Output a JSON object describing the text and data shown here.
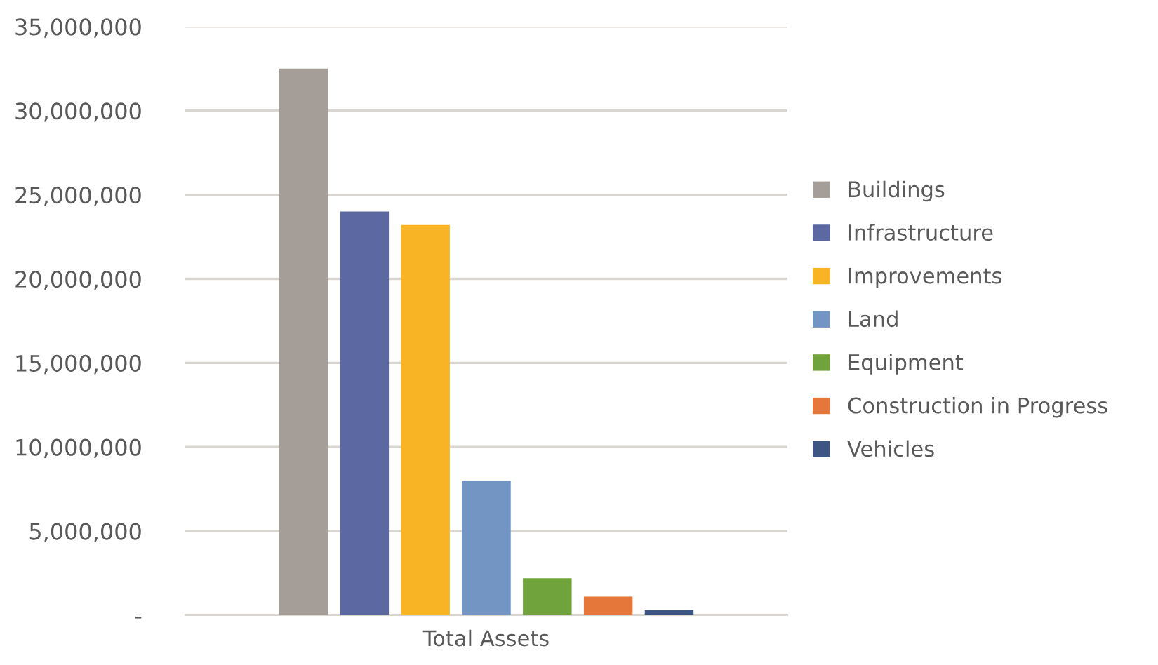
{
  "chart_data": {
    "type": "bar",
    "xlabel": "Total Assets",
    "categories": [
      null
    ],
    "series": [
      {
        "name": "Buildings",
        "color": "#a59e98",
        "values": [
          32500000
        ]
      },
      {
        "name": "Infrastructure",
        "color": "#5b68a2",
        "values": [
          24000000
        ]
      },
      {
        "name": "Improvements",
        "color": "#f8b425",
        "values": [
          23200000
        ]
      },
      {
        "name": "Land",
        "color": "#7295c4",
        "values": [
          8000000
        ]
      },
      {
        "name": "Equipment",
        "color": "#70a33c",
        "values": [
          2200000
        ]
      },
      {
        "name": "Construction in Progress",
        "color": "#e6773a",
        "values": [
          1100000
        ]
      },
      {
        "name": "Vehicles",
        "color": "#3c5583",
        "values": [
          300000
        ]
      }
    ],
    "ylim": [
      0,
      35000000
    ],
    "yticks": [
      {
        "value": 0,
        "label": "-"
      },
      {
        "value": 5000000,
        "label": "5,000,000"
      },
      {
        "value": 10000000,
        "label": "10,000,000"
      },
      {
        "value": 15000000,
        "label": "15,000,000"
      },
      {
        "value": 20000000,
        "label": "20,000,000"
      },
      {
        "value": 25000000,
        "label": "25,000,000"
      },
      {
        "value": 30000000,
        "label": "30,000,000"
      },
      {
        "value": 35000000,
        "label": "35,000,000"
      }
    ],
    "grid": "y",
    "legend": "right"
  }
}
